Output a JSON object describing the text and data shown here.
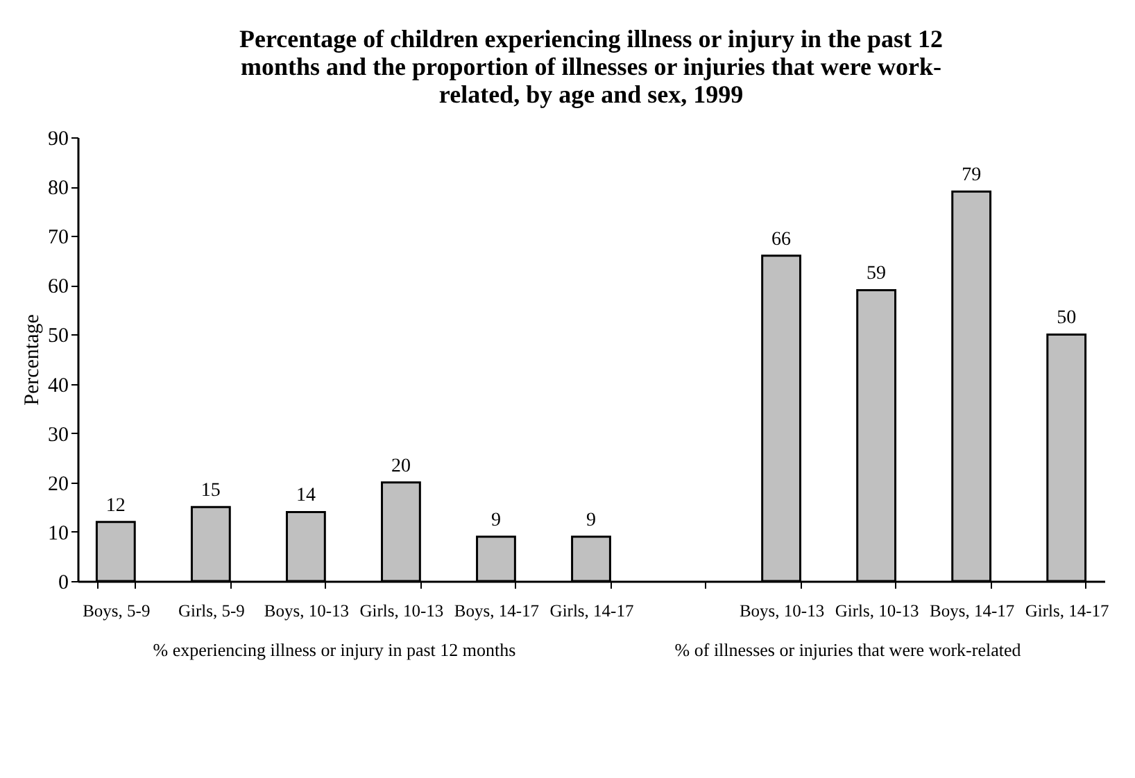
{
  "chart_data": {
    "type": "bar",
    "title": "Percentage of children experiencing illness or injury in the past 12 months and the proportion of illnesses or injuries that were work-related, by age and sex, 1999",
    "ylabel": "Percentage",
    "categories": [
      "Boys, 5-9",
      "Girls, 5-9",
      "Boys, 10-13",
      "Girls, 10-13",
      "Boys, 14-17",
      "Girls, 14-17",
      null,
      "Boys, 10-13",
      "Girls, 10-13",
      "Boys, 14-17",
      "Girls, 14-17"
    ],
    "values": [
      12,
      15,
      14,
      20,
      9,
      9,
      null,
      66,
      59,
      79,
      50
    ],
    "color": "#c0c0c0",
    "ylim": [
      0,
      90
    ],
    "yticks": [
      0,
      10,
      20,
      30,
      40,
      50,
      60,
      70,
      80,
      90
    ],
    "data_labels": true,
    "grid": false,
    "annotations": [
      "% experiencing illness or injury in past 12 months",
      "% of illnesses or injuries that were work-related"
    ]
  }
}
